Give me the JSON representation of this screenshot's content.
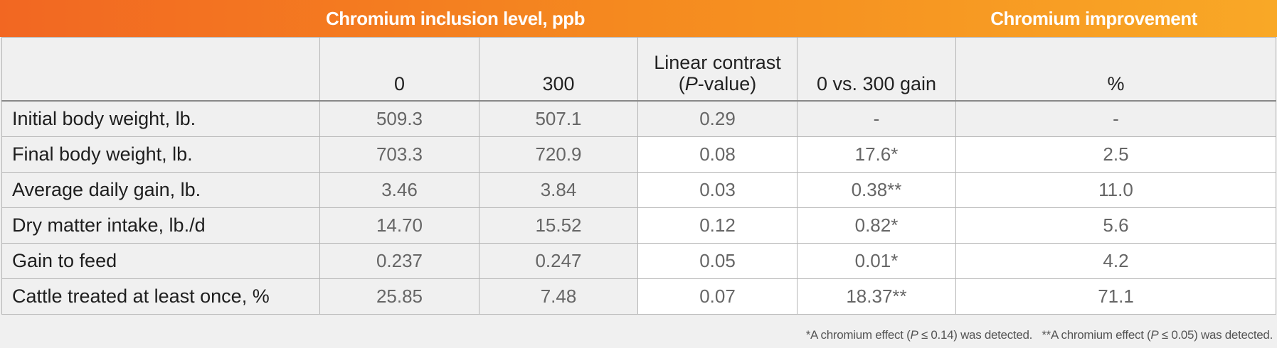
{
  "banner": {
    "left": "Chromium inclusion level, ppb",
    "right": "Chromium improvement"
  },
  "columns": {
    "c0": "0",
    "c300": "300",
    "linear_line1": "Linear contrast",
    "linear_p": "P",
    "linear_suffix": "-value)",
    "gain": "0 vs. 300 gain",
    "pct": "%"
  },
  "rows": [
    {
      "label": "Initial body weight, lb.",
      "c0": "509.3",
      "c300": "507.1",
      "p": "0.29",
      "gain": "-",
      "pct": "-"
    },
    {
      "label": "Final body weight, lb.",
      "c0": "703.3",
      "c300": "720.9",
      "p": "0.08",
      "gain": "17.6*",
      "pct": "2.5"
    },
    {
      "label": "Average daily gain, lb.",
      "c0": "3.46",
      "c300": "3.84",
      "p": "0.03",
      "gain": "0.38**",
      "pct": "11.0"
    },
    {
      "label": "Dry matter intake, lb./d",
      "c0": "14.70",
      "c300": "15.52",
      "p": "0.12",
      "gain": "0.82*",
      "pct": "5.6"
    },
    {
      "label": "Gain to feed",
      "c0": "0.237",
      "c300": "0.247",
      "p": "0.05",
      "gain": "0.01*",
      "pct": "4.2"
    },
    {
      "label": "Cattle treated at least once, %",
      "c0": "25.85",
      "c300": "7.48",
      "p": "0.07",
      "gain": "18.37**",
      "pct": "71.1"
    }
  ],
  "footnote": {
    "f1_pre": "*A chromium effect (",
    "f1_p": "P",
    "f1_post": " ≤ 0.14) was detected.",
    "f2_pre": "**A chromium effect (",
    "f2_p": "P",
    "f2_post": " ≤ 0.05) was detected."
  },
  "colors": {
    "banner_start": "#f26722",
    "banner_end": "#f9a826",
    "background": "#f0f0f0"
  }
}
